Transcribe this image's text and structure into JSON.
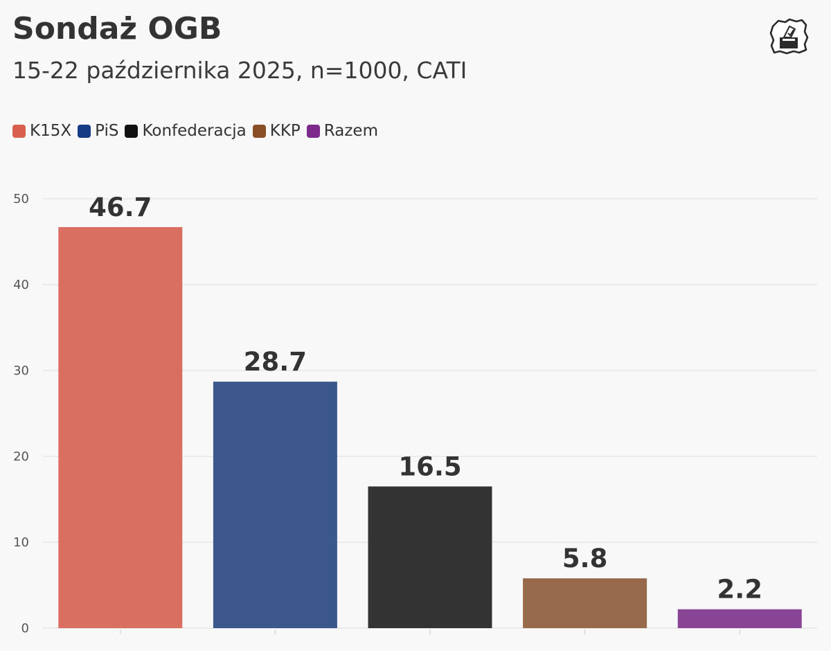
{
  "chart_data": {
    "type": "bar",
    "title": "Sondaż OGB",
    "subtitle": "15-22 października 2025, n=1000, CATI",
    "categories": [
      "K15X",
      "PiS",
      "Konfederacja",
      "KKP",
      "Razem"
    ],
    "values": [
      46.7,
      28.7,
      16.5,
      5.8,
      2.2
    ],
    "value_labels": [
      "46.7",
      "28.7",
      "16.5",
      "5.8",
      "2.2"
    ],
    "colors": [
      "#d96f61",
      "#3c578b",
      "#333333",
      "#986a4c",
      "#884495"
    ],
    "legend_colors": [
      "#d9604f",
      "#153c85",
      "#111111",
      "#8a4f26",
      "#7e2a8d"
    ],
    "xlabel": "",
    "ylabel": "",
    "ylim": [
      0,
      50
    ],
    "yticks": [
      0,
      10,
      20,
      30,
      40,
      50
    ],
    "ytick_labels": [
      "0",
      "10",
      "20",
      "30",
      "40",
      "50"
    ],
    "grid": true,
    "legend_position": "top-left"
  },
  "colors": {
    "background": "#f8f8f8",
    "grid": "#e6e6e6",
    "text": "#333333"
  },
  "logo": {
    "icon": "poland-ballot-box-icon"
  }
}
